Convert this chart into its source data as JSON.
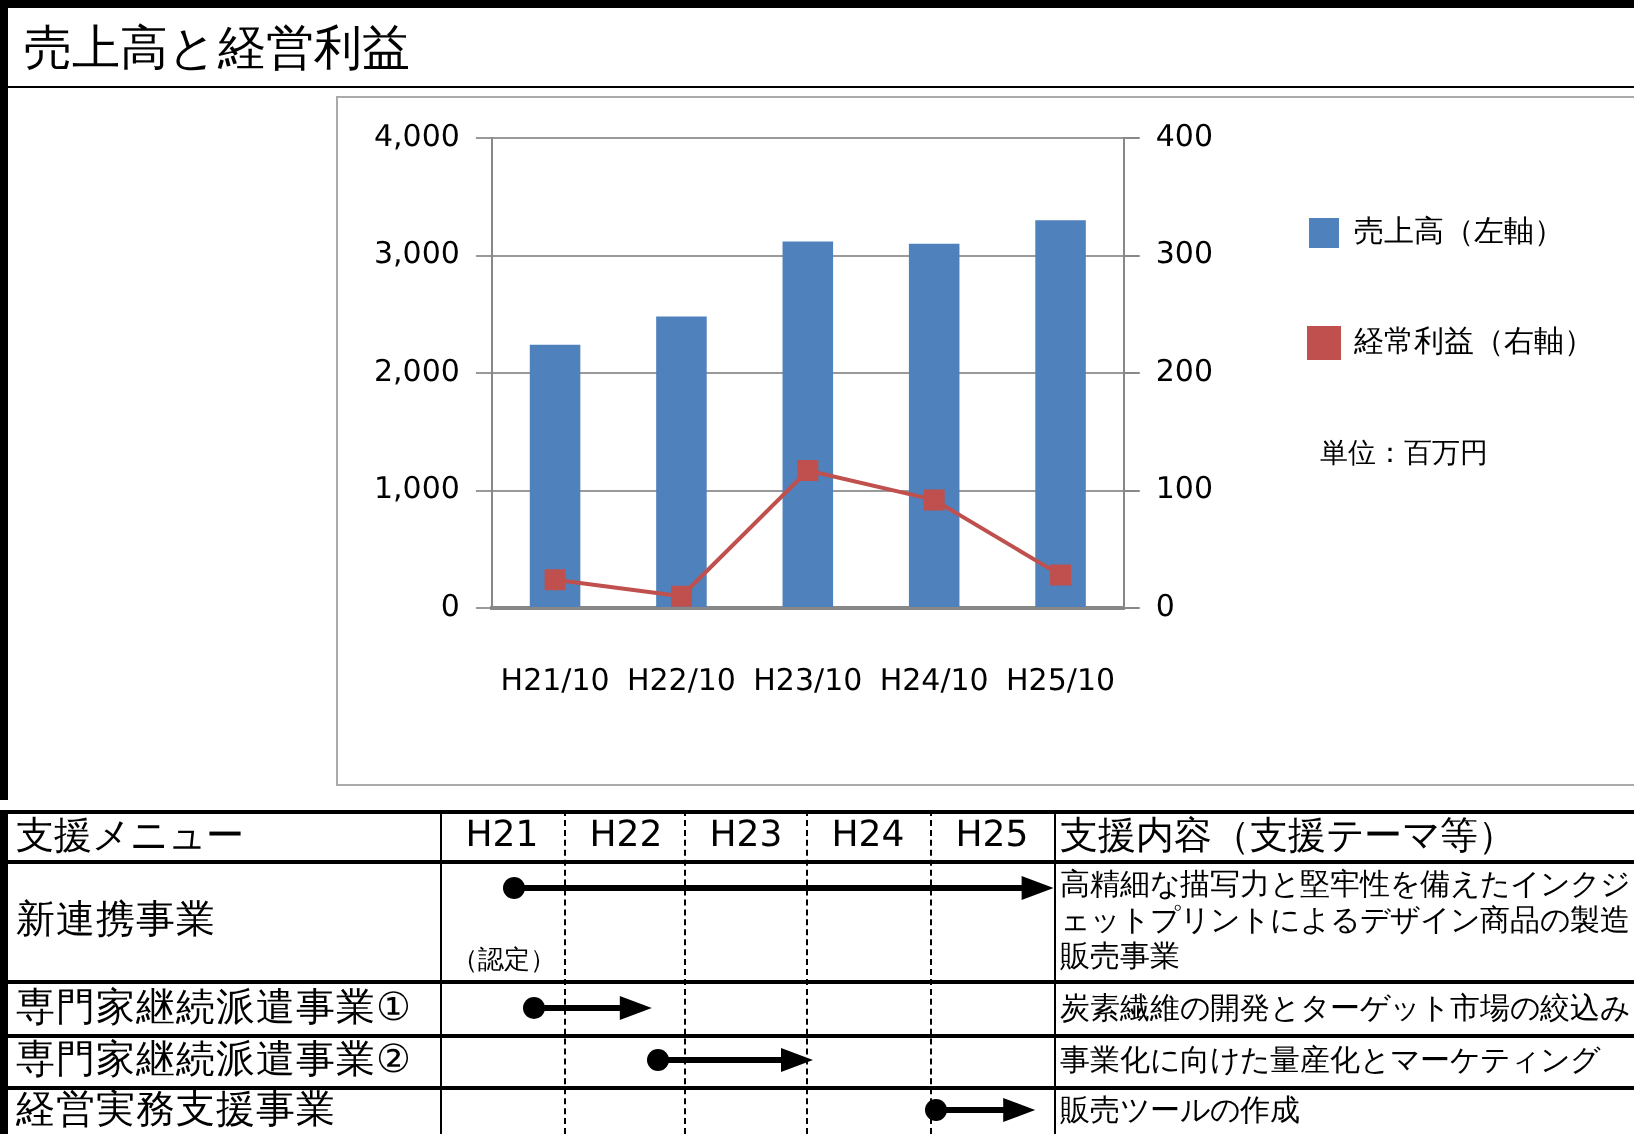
{
  "chart_data": [
    {
      "type": "bar",
      "title": "売上高と経営利益",
      "categories": [
        "H21/10",
        "H22/10",
        "H23/10",
        "H24/10",
        "H25/10"
      ],
      "series": [
        {
          "name": "売上高（左軸）",
          "type": "bar",
          "color": "#4f81bd",
          "values": [
            2240,
            2480,
            3120,
            3100,
            3300
          ]
        },
        {
          "name": "経常利益（右軸）",
          "type": "line",
          "axis": "y2",
          "color": "#c0504d",
          "values": [
            24,
            10,
            117,
            92,
            28
          ]
        }
      ],
      "ylim": [
        0,
        4000
      ],
      "yticks": [
        {
          "value": 0,
          "label": "0"
        },
        {
          "value": 1000,
          "label": "1,000"
        },
        {
          "value": 2000,
          "label": "2,000"
        },
        {
          "value": 3000,
          "label": "3,000"
        },
        {
          "value": 4000,
          "label": "4,000"
        }
      ],
      "y2lim": [
        0,
        400
      ],
      "y2ticks": [
        0,
        100,
        200,
        300,
        400
      ],
      "grid": "y",
      "legend": "right",
      "marker": "square",
      "annotations": [
        "単位：百万円"
      ]
    },
    {
      "type": "other",
      "categories": [
        "H21",
        "H22",
        "H23",
        "H24",
        "H25"
      ],
      "y_categories": [
        "新連携事業",
        "専門家継続派遣事業①",
        "専門家継続派遣事業②",
        "経営実務支援事業"
      ],
      "y2_categories": [
        "高精細な描写力と堅牢性を備えたインクジェットプリントによるデザイン商品の製造販売事業",
        "炭素繊維の開発とターゲット市場の絞込み",
        "事業化に向けた量産化とマーケティング",
        "販売ツールの作成"
      ],
      "annotations": [
        "支援メニュー",
        "支援内容（支援テーマ等）",
        "（認定）"
      ]
    }
  ]
}
